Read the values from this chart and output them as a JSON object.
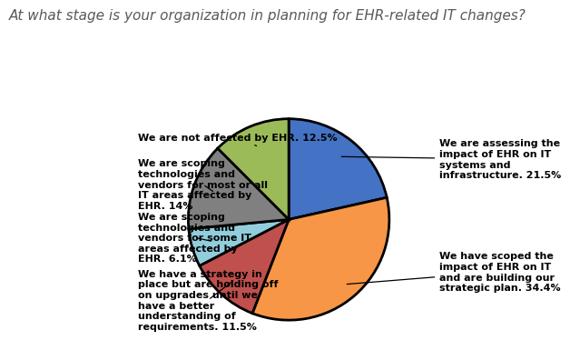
{
  "title": "At what stage is your organization in planning for EHR-related IT changes?",
  "slices": [
    {
      "label": "We are assessing the\nimpact of EHR on IT\nsystems and\ninfrastructure. 21.5%",
      "value": 21.5,
      "color": "#4472C4"
    },
    {
      "label": "We have scoped the\nimpact of EHR on IT\nand are building our\nstrategic plan. 34.4%",
      "value": 34.4,
      "color": "#F79646"
    },
    {
      "label": "We have a strategy in\nplace but are holding off\non upgrades until we\nhave a better\nunderstanding of\nrequirements. 11.5%",
      "value": 11.5,
      "color": "#C0504D"
    },
    {
      "label": "We are scoping\ntechnologies and\nvendors for some IT\nareas affected by\nEHR. 6.1%",
      "value": 6.1,
      "color": "#92CDDC"
    },
    {
      "label": "We are scoping\ntechnologies and\nvendors for most or all\nIT areas affected by\nEHR. 14%",
      "value": 14.0,
      "color": "#808080"
    },
    {
      "label": "We are not affected by EHR. 12.5%",
      "value": 12.5,
      "color": "#9BBB59"
    }
  ],
  "title_fontsize": 11,
  "label_fontsize": 8,
  "background_color": "#FFFFFF",
  "startangle": 90
}
